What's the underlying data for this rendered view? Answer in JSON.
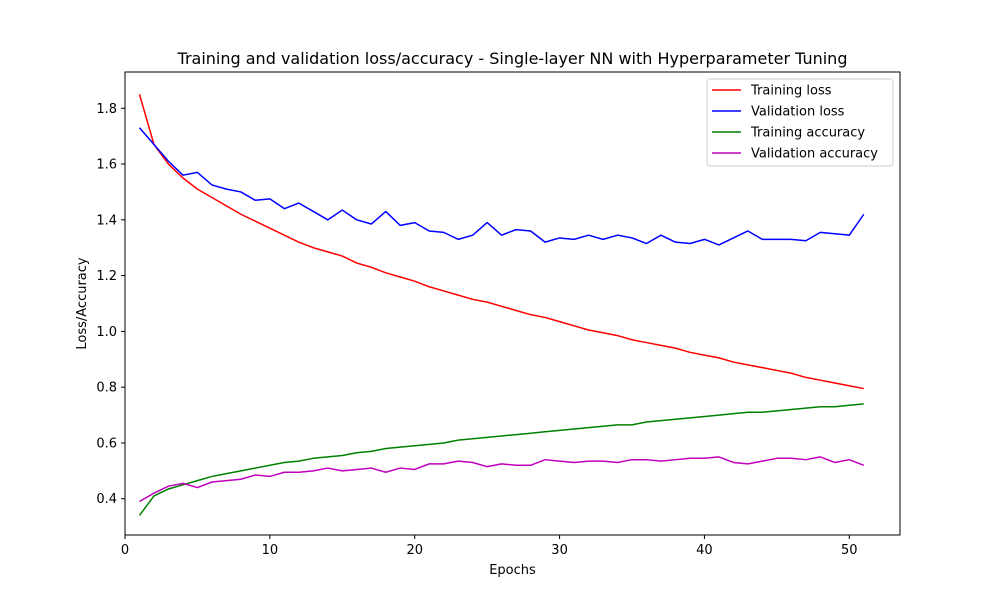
{
  "chart_data": {
    "type": "line",
    "title": "Training and validation loss/accuracy - Single-layer NN with Hyperparameter Tuning",
    "xlabel": "Epochs",
    "ylabel": "Loss/Accuracy",
    "xlim": [
      0,
      53.5
    ],
    "ylim": [
      0.27,
      1.93
    ],
    "xticks": [
      0,
      10,
      20,
      30,
      40,
      50
    ],
    "xtick_labels": [
      "0",
      "10",
      "20",
      "30",
      "40",
      "50"
    ],
    "yticks": [
      0.4,
      0.6,
      0.8,
      1.0,
      1.2,
      1.4,
      1.6,
      1.8
    ],
    "ytick_labels": [
      "0.4",
      "0.6",
      "0.8",
      "1.0",
      "1.2",
      "1.4",
      "1.6",
      "1.8"
    ],
    "grid": false,
    "legend_position": "top-right",
    "x": [
      1,
      2,
      3,
      4,
      5,
      6,
      7,
      8,
      9,
      10,
      11,
      12,
      13,
      14,
      15,
      16,
      17,
      18,
      19,
      20,
      21,
      22,
      23,
      24,
      25,
      26,
      27,
      28,
      29,
      30,
      31,
      32,
      33,
      34,
      35,
      36,
      37,
      38,
      39,
      40,
      41,
      42,
      43,
      44,
      45,
      46,
      47,
      48,
      49,
      50,
      51
    ],
    "series": [
      {
        "name": "Training loss",
        "color": "#ff0000",
        "values": [
          1.85,
          1.67,
          1.6,
          1.55,
          1.51,
          1.48,
          1.45,
          1.42,
          1.395,
          1.37,
          1.345,
          1.32,
          1.3,
          1.285,
          1.27,
          1.245,
          1.23,
          1.21,
          1.195,
          1.18,
          1.16,
          1.145,
          1.13,
          1.115,
          1.105,
          1.09,
          1.075,
          1.06,
          1.05,
          1.035,
          1.02,
          1.005,
          0.995,
          0.985,
          0.97,
          0.96,
          0.95,
          0.94,
          0.925,
          0.915,
          0.905,
          0.89,
          0.88,
          0.87,
          0.86,
          0.85,
          0.835,
          0.825,
          0.815,
          0.805,
          0.795
        ]
      },
      {
        "name": "Validation loss",
        "color": "#0000ff",
        "values": [
          1.73,
          1.67,
          1.61,
          1.56,
          1.57,
          1.525,
          1.51,
          1.5,
          1.47,
          1.475,
          1.44,
          1.46,
          1.43,
          1.4,
          1.435,
          1.4,
          1.385,
          1.43,
          1.38,
          1.39,
          1.36,
          1.355,
          1.33,
          1.345,
          1.39,
          1.345,
          1.365,
          1.36,
          1.32,
          1.335,
          1.33,
          1.345,
          1.33,
          1.345,
          1.335,
          1.315,
          1.345,
          1.32,
          1.315,
          1.33,
          1.31,
          1.335,
          1.36,
          1.33,
          1.33,
          1.33,
          1.325,
          1.355,
          1.35,
          1.345,
          1.42
        ]
      },
      {
        "name": "Training accuracy",
        "color": "#008000",
        "values": [
          0.34,
          0.41,
          0.435,
          0.45,
          0.465,
          0.48,
          0.49,
          0.5,
          0.51,
          0.52,
          0.53,
          0.535,
          0.545,
          0.55,
          0.555,
          0.565,
          0.57,
          0.58,
          0.585,
          0.59,
          0.595,
          0.6,
          0.61,
          0.615,
          0.62,
          0.625,
          0.63,
          0.635,
          0.64,
          0.645,
          0.65,
          0.655,
          0.66,
          0.665,
          0.665,
          0.675,
          0.68,
          0.685,
          0.69,
          0.695,
          0.7,
          0.705,
          0.71,
          0.71,
          0.715,
          0.72,
          0.725,
          0.73,
          0.73,
          0.735,
          0.74
        ]
      },
      {
        "name": "Validation accuracy",
        "color": "#bf00bf",
        "values": [
          0.39,
          0.42,
          0.445,
          0.455,
          0.44,
          0.46,
          0.465,
          0.47,
          0.485,
          0.48,
          0.495,
          0.495,
          0.5,
          0.51,
          0.5,
          0.505,
          0.51,
          0.495,
          0.51,
          0.505,
          0.525,
          0.525,
          0.535,
          0.53,
          0.515,
          0.525,
          0.52,
          0.52,
          0.54,
          0.535,
          0.53,
          0.535,
          0.535,
          0.53,
          0.54,
          0.54,
          0.535,
          0.54,
          0.545,
          0.545,
          0.55,
          0.53,
          0.525,
          0.535,
          0.545,
          0.545,
          0.54,
          0.55,
          0.53,
          0.54,
          0.52
        ]
      }
    ]
  }
}
